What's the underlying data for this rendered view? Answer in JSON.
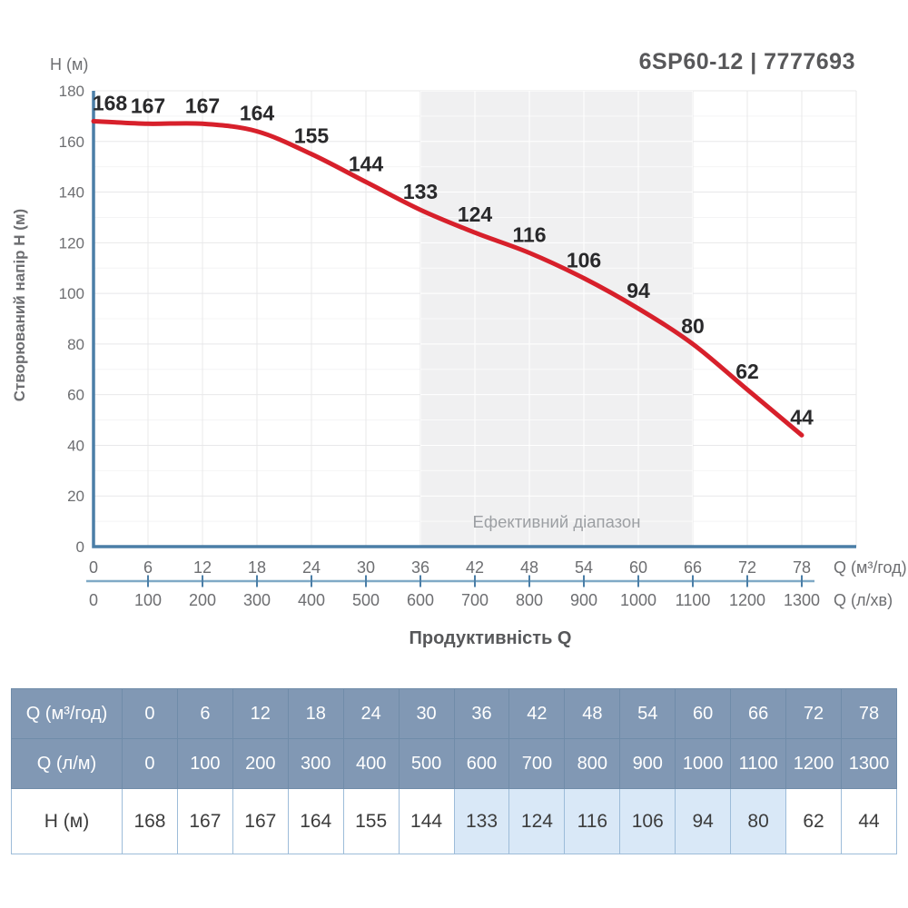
{
  "header": {
    "title": "6SP60-12 | 7777693",
    "y_unit_label": "H (м)"
  },
  "chart_data": {
    "type": "line",
    "title": "",
    "xlabel": "Продуктивність Q",
    "ylabel": "Створюваний напір H (м)",
    "ylim": [
      0,
      180
    ],
    "xlim": [
      0,
      84
    ],
    "grid": {
      "x_step": 6,
      "y_major_step": 20,
      "y_minor_step": 10
    },
    "y_ticks": [
      0,
      20,
      40,
      60,
      80,
      100,
      120,
      140,
      160,
      180
    ],
    "x_primary": {
      "unit": "Q (м³/год)",
      "ticks": [
        0,
        6,
        12,
        18,
        24,
        30,
        36,
        42,
        48,
        54,
        60,
        66,
        72,
        78
      ]
    },
    "x_secondary": {
      "unit": "Q (л/хв)",
      "ticks": [
        0,
        100,
        200,
        300,
        400,
        500,
        600,
        700,
        800,
        900,
        1000,
        1100,
        1200,
        1300
      ]
    },
    "series": [
      {
        "name": "H (м)",
        "color": "#d7202b",
        "x": [
          0,
          6,
          12,
          18,
          24,
          30,
          36,
          42,
          48,
          54,
          60,
          66,
          72,
          78
        ],
        "y": [
          168,
          167,
          167,
          164,
          155,
          144,
          133,
          124,
          116,
          106,
          94,
          80,
          62,
          44
        ],
        "point_labels": [
          "168",
          "167",
          "167",
          "164",
          "155",
          "144",
          "133",
          "124",
          "116",
          "106",
          "94",
          "80",
          "62",
          "44"
        ]
      }
    ],
    "effective_range": {
      "label": "Ефективний діапазон",
      "x_from": 36,
      "x_to": 66
    }
  },
  "table": {
    "rows": [
      {
        "label": "Q (м³/год)",
        "type": "header",
        "values": [
          "0",
          "6",
          "12",
          "18",
          "24",
          "30",
          "36",
          "42",
          "48",
          "54",
          "60",
          "66",
          "72",
          "78"
        ]
      },
      {
        "label": "Q (л/м)",
        "type": "header",
        "values": [
          "0",
          "100",
          "200",
          "300",
          "400",
          "500",
          "600",
          "700",
          "800",
          "900",
          "1000",
          "1100",
          "1200",
          "1300"
        ]
      },
      {
        "label": "H (м)",
        "type": "data",
        "values": [
          "168",
          "167",
          "167",
          "164",
          "155",
          "144",
          "133",
          "124",
          "116",
          "106",
          "94",
          "80",
          "62",
          "44"
        ],
        "highlight_from": 6,
        "highlight_to": 11
      }
    ]
  },
  "colors": {
    "curve": "#d7202b",
    "axis": "#4b7ea7",
    "axis_secondary": "#7fa9c6",
    "grid": "#e8e8ea",
    "grid_minor": "#f4f4f5",
    "band": "#f0f0f1",
    "band_text": "#9c9fa3",
    "tick_text": "#6d6e71",
    "point_label_text": "#29292b",
    "title_text": "#58585a",
    "table_header_bg": "#8198b4",
    "table_header_border": "#708ca9",
    "table_highlight": "#d9e8f7",
    "table_border": "#9dbcd9",
    "table_text": "#3c3c3c"
  }
}
